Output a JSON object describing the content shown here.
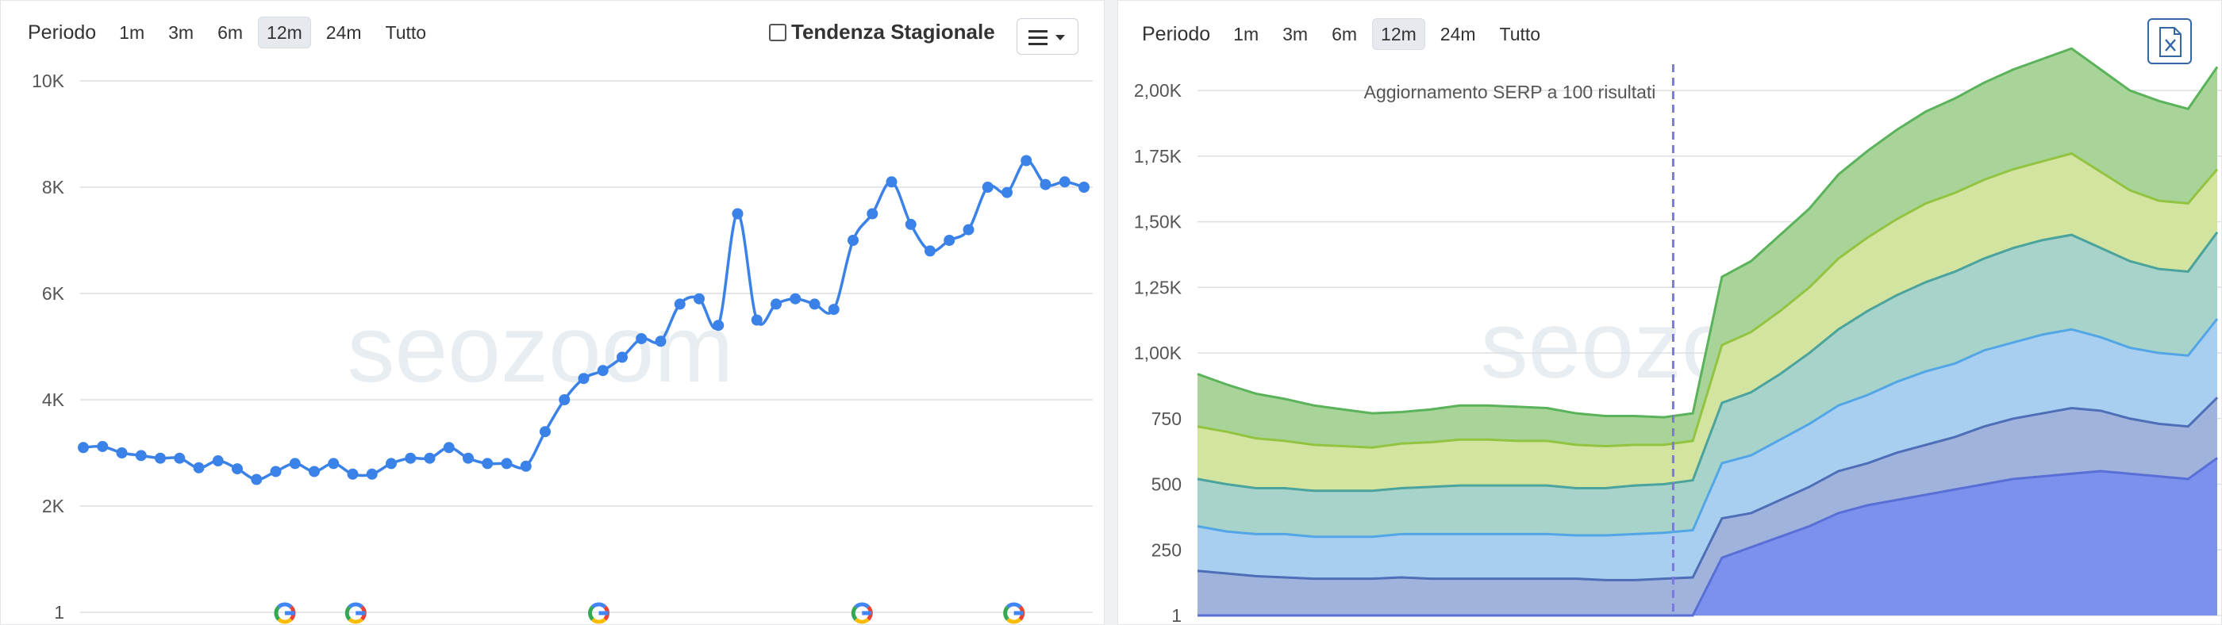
{
  "left_panel": {
    "period_label": "Periodo",
    "periods": [
      "1m",
      "3m",
      "6m",
      "12m",
      "24m",
      "Tutto"
    ],
    "active_period": "12m",
    "seasonal_label": "Tendenza Stagionale",
    "seasonal_checked": false,
    "menu_icon": "hamburger-menu-icon"
  },
  "right_panel": {
    "period_label": "Periodo",
    "periods": [
      "1m",
      "3m",
      "6m",
      "12m",
      "24m",
      "Tutto"
    ],
    "active_period": "12m",
    "export_icon": "excel-export-icon"
  },
  "colors": {
    "line": "#3b82e8",
    "stack": [
      "#7c90ee",
      "#9fb3dd",
      "#a9cff0",
      "#a8d3ca",
      "#d3e3a0",
      "#a8d49a"
    ],
    "stack_lines": [
      "#5a6fd6",
      "#4f6eb8",
      "#52a6e6",
      "#4aa39c",
      "#93c441",
      "#5ab35a"
    ],
    "marker_line": "#7b78e0"
  },
  "chart_data": [
    {
      "type": "line",
      "yticks": [
        "10K",
        "8K",
        "6K",
        "4K",
        "2K",
        "1"
      ],
      "ytick_values": [
        10000,
        8000,
        6000,
        4000,
        2000,
        0
      ],
      "ylim": [
        0,
        10000
      ],
      "grid": true,
      "watermark": "seozoom",
      "values": [
        3100,
        3120,
        3000,
        2950,
        2900,
        2900,
        2720,
        2850,
        2700,
        2500,
        2650,
        2800,
        2650,
        2800,
        2600,
        2600,
        2800,
        2900,
        2900,
        3100,
        2900,
        2800,
        2800,
        2750,
        3400,
        4000,
        4400,
        4550,
        4800,
        5150,
        5100,
        5800,
        5900,
        5400,
        7500,
        5500,
        5800,
        5900,
        5800,
        5700,
        7000,
        7500,
        8100,
        7300,
        6800,
        7000,
        7200,
        8000,
        7900,
        8500,
        8050,
        8100,
        8000
      ],
      "google_update_markers": [
        0.21,
        0.28,
        0.52,
        0.78,
        0.93
      ]
    },
    {
      "type": "area",
      "stacked": true,
      "yticks": [
        "2,00K",
        "1,75K",
        "1,50K",
        "1,25K",
        "1,00K",
        "750",
        "500",
        "250",
        "1"
      ],
      "ytick_values": [
        2000,
        1750,
        1500,
        1250,
        1000,
        750,
        500,
        250,
        0
      ],
      "ylim": [
        0,
        2100
      ],
      "grid": true,
      "watermark": "seozoom",
      "annotation": "Aggiornamento SERP a 100 risultati",
      "annotation_index": 16,
      "series": [
        {
          "values": [
            0,
            0,
            0,
            0,
            0,
            0,
            0,
            0,
            0,
            0,
            0,
            0,
            0,
            0,
            0,
            0,
            0,
            0,
            220,
            260,
            300,
            340,
            390,
            420,
            440,
            460,
            480,
            500,
            520,
            530,
            540,
            550,
            540,
            530,
            520,
            600
          ]
        },
        {
          "values": [
            170,
            160,
            150,
            145,
            140,
            140,
            140,
            145,
            140,
            140,
            140,
            140,
            140,
            140,
            135,
            135,
            140,
            145,
            150,
            130,
            140,
            150,
            160,
            160,
            180,
            190,
            200,
            220,
            230,
            240,
            250,
            230,
            210,
            200,
            200,
            230
          ]
        },
        {
          "values": [
            170,
            160,
            160,
            165,
            160,
            160,
            160,
            165,
            170,
            170,
            170,
            170,
            170,
            165,
            170,
            175,
            175,
            180,
            210,
            220,
            230,
            240,
            250,
            260,
            270,
            280,
            280,
            290,
            290,
            300,
            300,
            280,
            270,
            270,
            270,
            300
          ]
        },
        {
          "values": [
            180,
            180,
            175,
            175,
            175,
            175,
            175,
            175,
            180,
            185,
            185,
            185,
            185,
            180,
            180,
            185,
            185,
            190,
            230,
            240,
            250,
            270,
            290,
            320,
            330,
            340,
            350,
            350,
            360,
            360,
            360,
            340,
            330,
            320,
            320,
            330
          ]
        },
        {
          "values": [
            200,
            200,
            190,
            180,
            175,
            170,
            165,
            170,
            170,
            175,
            175,
            170,
            170,
            165,
            160,
            155,
            150,
            150,
            220,
            230,
            240,
            250,
            270,
            280,
            290,
            300,
            300,
            300,
            300,
            300,
            310,
            290,
            270,
            260,
            260,
            240
          ]
        },
        {
          "values": [
            200,
            180,
            170,
            160,
            150,
            140,
            130,
            120,
            125,
            130,
            130,
            130,
            125,
            120,
            115,
            110,
            105,
            105,
            260,
            270,
            290,
            300,
            320,
            330,
            340,
            350,
            360,
            370,
            380,
            390,
            400,
            390,
            380,
            380,
            360,
            390
          ]
        }
      ]
    }
  ]
}
